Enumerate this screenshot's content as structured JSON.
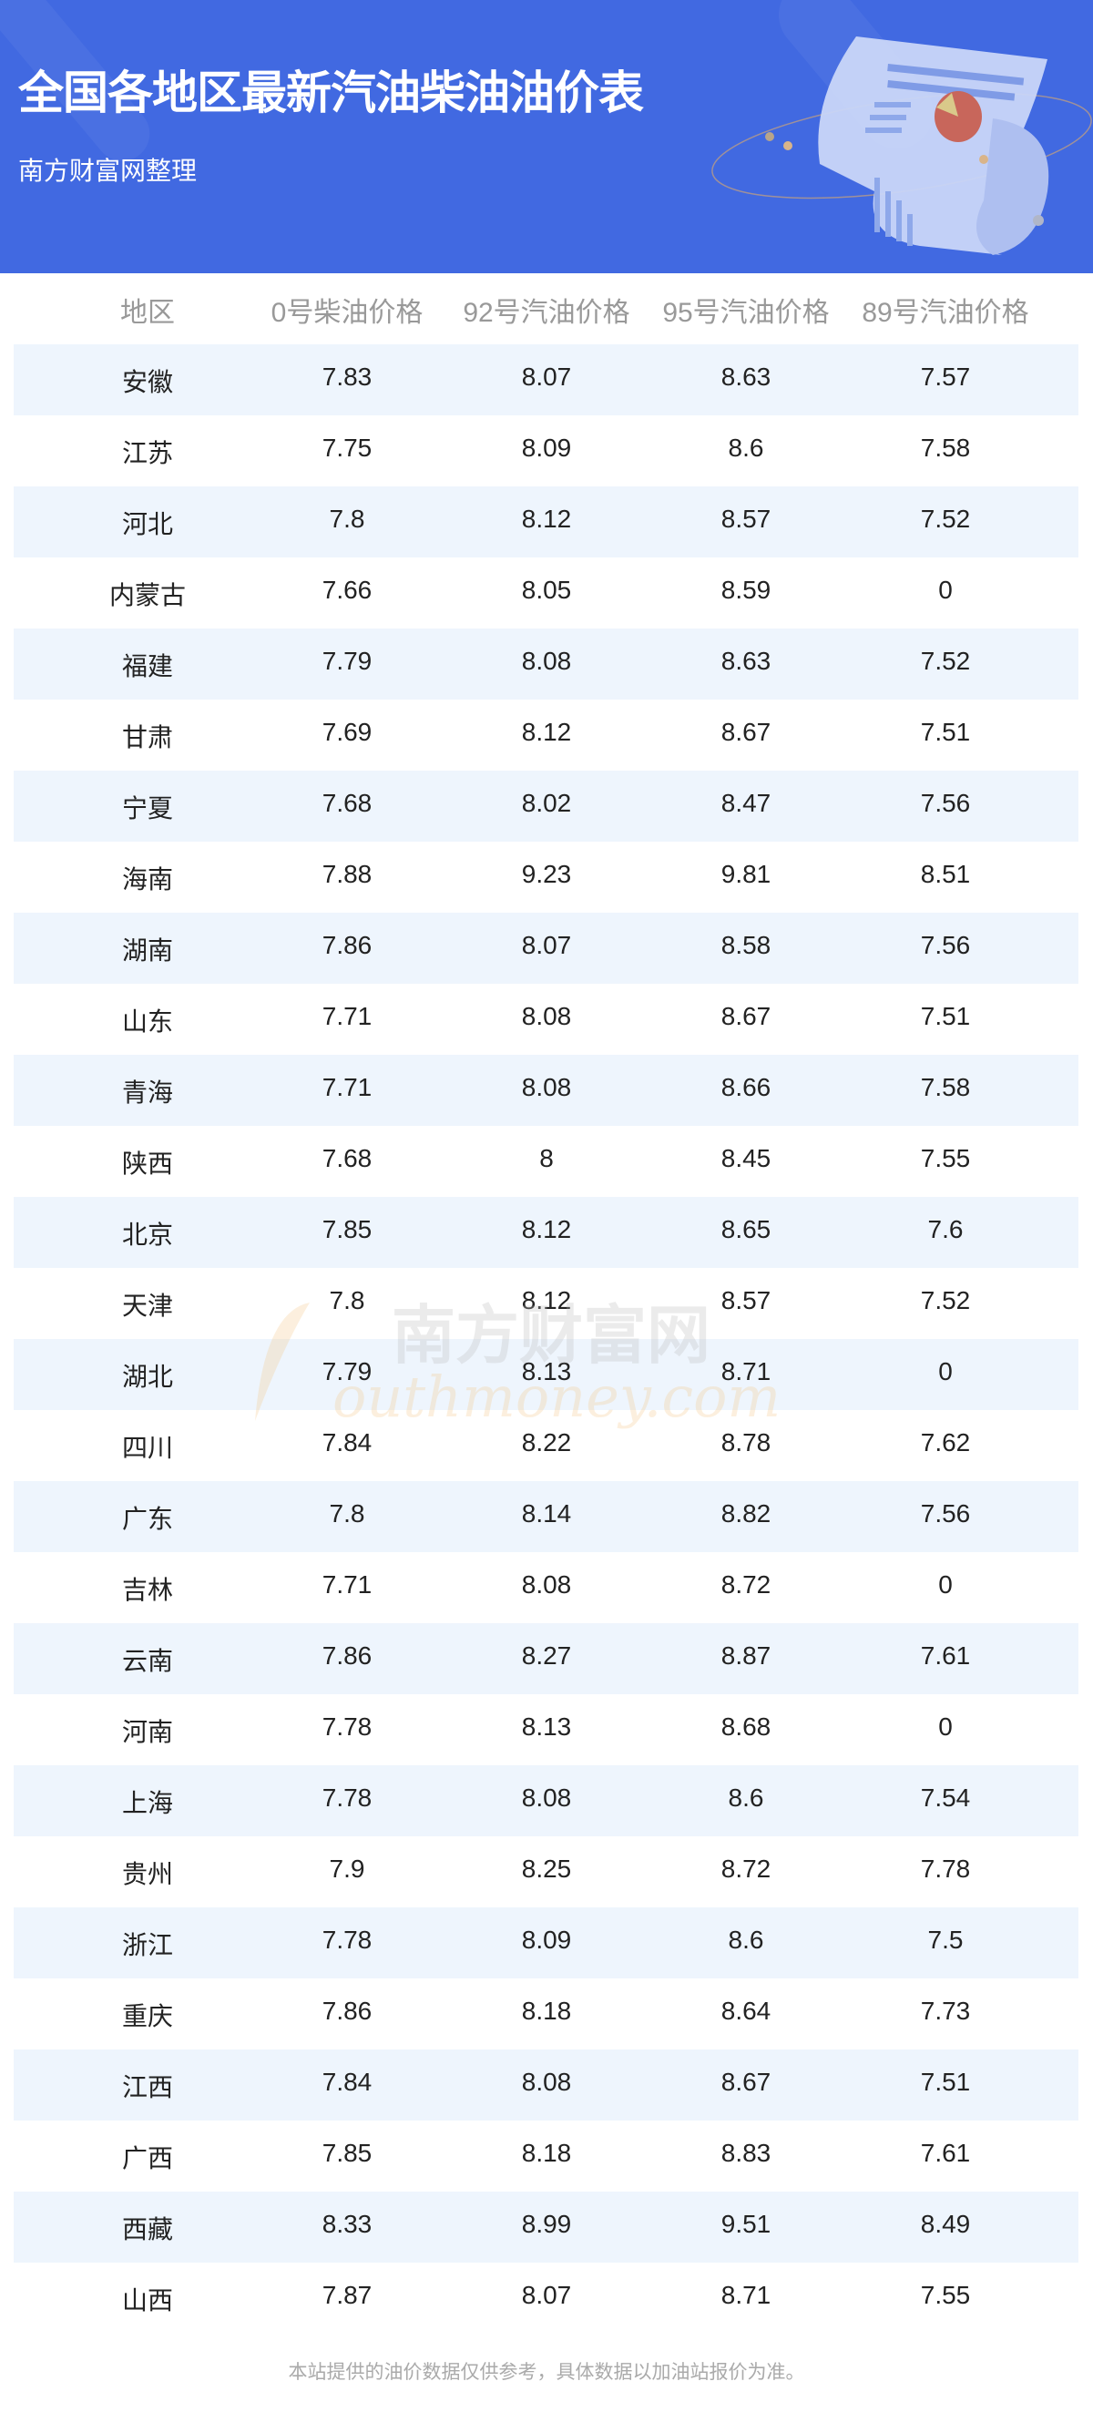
{
  "header": {
    "title": "全国各地区最新汽油柴油油价表",
    "subtitle": "南方财富网整理",
    "background": "#4169e1"
  },
  "table": {
    "columns": [
      "地区",
      "0号柴油价格",
      "92号汽油价格",
      "95号汽油价格",
      "89号汽油价格"
    ],
    "rows": [
      [
        "安徽",
        "7.83",
        "8.07",
        "8.63",
        "7.57"
      ],
      [
        "江苏",
        "7.75",
        "8.09",
        "8.6",
        "7.58"
      ],
      [
        "河北",
        "7.8",
        "8.12",
        "8.57",
        "7.52"
      ],
      [
        "内蒙古",
        "7.66",
        "8.05",
        "8.59",
        "0"
      ],
      [
        "福建",
        "7.79",
        "8.08",
        "8.63",
        "7.52"
      ],
      [
        "甘肃",
        "7.69",
        "8.12",
        "8.67",
        "7.51"
      ],
      [
        "宁夏",
        "7.68",
        "8.02",
        "8.47",
        "7.56"
      ],
      [
        "海南",
        "7.88",
        "9.23",
        "9.81",
        "8.51"
      ],
      [
        "湖南",
        "7.86",
        "8.07",
        "8.58",
        "7.56"
      ],
      [
        "山东",
        "7.71",
        "8.08",
        "8.67",
        "7.51"
      ],
      [
        "青海",
        "7.71",
        "8.08",
        "8.66",
        "7.58"
      ],
      [
        "陕西",
        "7.68",
        "8",
        "8.45",
        "7.55"
      ],
      [
        "北京",
        "7.85",
        "8.12",
        "8.65",
        "7.6"
      ],
      [
        "天津",
        "7.8",
        "8.12",
        "8.57",
        "7.52"
      ],
      [
        "湖北",
        "7.79",
        "8.13",
        "8.71",
        "0"
      ],
      [
        "四川",
        "7.84",
        "8.22",
        "8.78",
        "7.62"
      ],
      [
        "广东",
        "7.8",
        "8.14",
        "8.82",
        "7.56"
      ],
      [
        "吉林",
        "7.71",
        "8.08",
        "8.72",
        "0"
      ],
      [
        "云南",
        "7.86",
        "8.27",
        "8.87",
        "7.61"
      ],
      [
        "河南",
        "7.78",
        "8.13",
        "8.68",
        "0"
      ],
      [
        "上海",
        "7.78",
        "8.08",
        "8.6",
        "7.54"
      ],
      [
        "贵州",
        "7.9",
        "8.25",
        "8.72",
        "7.78"
      ],
      [
        "浙江",
        "7.78",
        "8.09",
        "8.6",
        "7.5"
      ],
      [
        "重庆",
        "7.86",
        "8.18",
        "8.64",
        "7.73"
      ],
      [
        "江西",
        "7.84",
        "8.08",
        "8.67",
        "7.51"
      ],
      [
        "广西",
        "7.85",
        "8.18",
        "8.83",
        "7.61"
      ],
      [
        "西藏",
        "8.33",
        "8.99",
        "9.51",
        "8.49"
      ],
      [
        "山西",
        "7.87",
        "8.07",
        "8.71",
        "7.55"
      ]
    ],
    "stripe_color": "#eef5fd"
  },
  "watermark": {
    "cn": "南方财富网",
    "en": "outhmoney.com"
  },
  "footer": {
    "note": "本站提供的油价数据仅供参考，具体数据以加油站报价为准。"
  }
}
